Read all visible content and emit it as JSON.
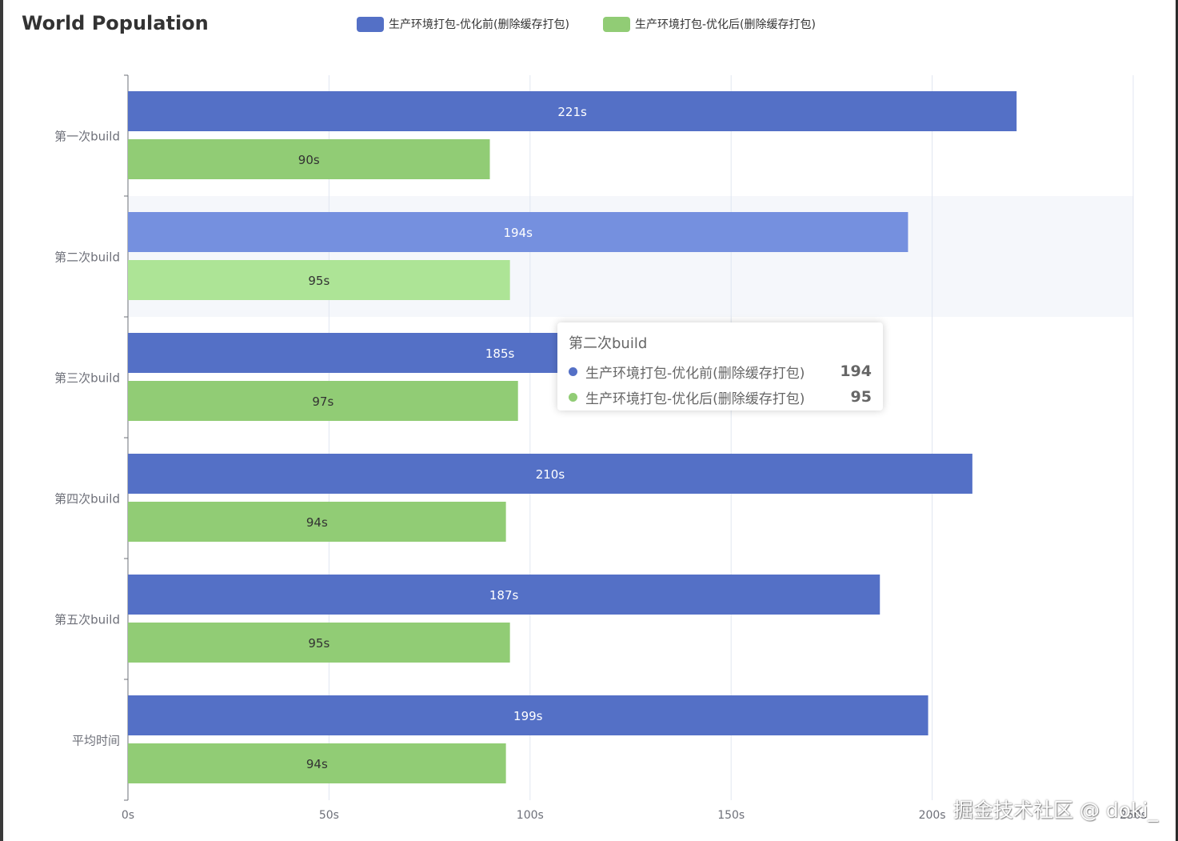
{
  "colors": {
    "series0": "#5470c6",
    "series0_emph": "#7590df",
    "series1": "#91cc75",
    "series1_emph": "#ade496",
    "axis": "#6e7079",
    "grid": "#e0e6f1",
    "highlight": "#f5f7fb"
  },
  "chart_data": {
    "type": "bar",
    "orientation": "horizontal",
    "title": "World Population",
    "categories": [
      "第一次build",
      "第二次build",
      "第三次build",
      "第四次build",
      "第五次build",
      "平均时间"
    ],
    "series": [
      {
        "name": "生产环境打包-优化前(删除缓存打包)",
        "values": [
          221,
          194,
          185,
          210,
          187,
          199
        ]
      },
      {
        "name": "生产环境打包-优化后(删除缓存打包)",
        "values": [
          90,
          95,
          97,
          94,
          95,
          94
        ]
      }
    ],
    "value_suffix": "s",
    "xlim": [
      0,
      250
    ],
    "xticks": [
      0,
      50,
      100,
      150,
      200,
      250
    ],
    "xtick_labels": [
      "0s",
      "50s",
      "100s",
      "150s",
      "200s",
      "250s"
    ],
    "highlighted_category": "第二次build",
    "legend_position": "top"
  },
  "tooltip": {
    "title": "第二次build",
    "rows": [
      {
        "name": "生产环境打包-优化前(删除缓存打包)",
        "value": "194"
      },
      {
        "name": "生产环境打包-优化后(删除缓存打包)",
        "value": "95"
      }
    ]
  },
  "watermark": "掘金技术社区 @ doki_"
}
